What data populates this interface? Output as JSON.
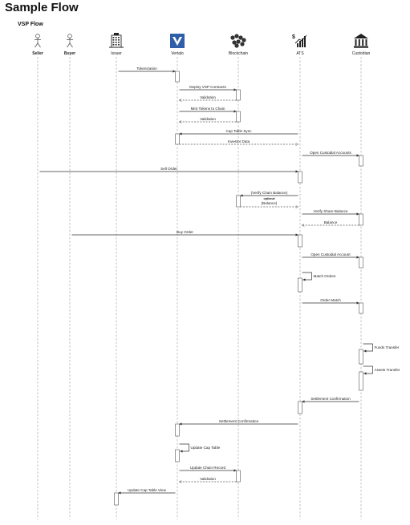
{
  "title": "Sample Flow",
  "flow_title": "VSP Flow",
  "participants": [
    {
      "id": "seller",
      "label": "Seller",
      "icon": "person-icon",
      "bold": true
    },
    {
      "id": "buyer",
      "label": "Buyer",
      "icon": "person-icon",
      "bold": true
    },
    {
      "id": "issuer",
      "label": "Issuer",
      "icon": "building-icon",
      "bold": false
    },
    {
      "id": "vertalo",
      "label": "Vertalo",
      "icon": "vertalo-logo-icon",
      "bold": false
    },
    {
      "id": "blockchain",
      "label": "Blockchain",
      "icon": "blockchain-icon",
      "bold": false
    },
    {
      "id": "ats",
      "label": "ATS",
      "icon": "chart-icon",
      "bold": false
    },
    {
      "id": "custodian",
      "label": "Custodian",
      "icon": "bank-icon",
      "bold": false
    }
  ],
  "messages": [
    {
      "from": "issuer",
      "to": "vertalo",
      "label": "Tokenization",
      "style": "solid"
    },
    {
      "from": "vertalo",
      "to": "blockchain",
      "label": "Deploy VSP Contracts",
      "style": "solid"
    },
    {
      "from": "blockchain",
      "to": "vertalo",
      "label": "Validation",
      "style": "dashed"
    },
    {
      "from": "vertalo",
      "to": "blockchain",
      "label": "Mint Tokens to Chain",
      "style": "solid"
    },
    {
      "from": "blockchain",
      "to": "vertalo",
      "label": "Validation",
      "style": "dashed"
    },
    {
      "from": "ats",
      "to": "vertalo",
      "label": "Cap Table Sync",
      "style": "solid"
    },
    {
      "from": "vertalo",
      "to": "ats",
      "label": "Investor Data",
      "style": "dashed"
    },
    {
      "from": "ats",
      "to": "custodian",
      "label": "Open Custodial Accounts",
      "style": "solid"
    },
    {
      "from": "seller",
      "to": "ats",
      "label": "Sell Order",
      "style": "solid"
    },
    {
      "from": "ats",
      "to": "blockchain",
      "label": "(Verify Chain Balance)",
      "style": "solid",
      "note": "optional"
    },
    {
      "from": "blockchain",
      "to": "ats",
      "label": "(Balance)",
      "style": "dashed"
    },
    {
      "from": "ats",
      "to": "custodian",
      "label": "Verify Share Balance",
      "style": "solid"
    },
    {
      "from": "custodian",
      "to": "ats",
      "label": "Balance",
      "style": "dashed"
    },
    {
      "from": "buyer",
      "to": "ats",
      "label": "Buy Order",
      "style": "solid"
    },
    {
      "from": "ats",
      "to": "custodian",
      "label": "Open Custodial Account",
      "style": "solid"
    },
    {
      "from": "ats",
      "to": "ats",
      "label": "Match Orders",
      "style": "self"
    },
    {
      "from": "ats",
      "to": "custodian",
      "label": "Order Match",
      "style": "solid"
    },
    {
      "from": "custodian",
      "to": "custodian",
      "label": "Funds Transfer",
      "style": "self"
    },
    {
      "from": "custodian",
      "to": "custodian",
      "label": "Assets Transfer",
      "style": "self"
    },
    {
      "from": "custodian",
      "to": "ats",
      "label": "Settlement Confirmation",
      "style": "solid"
    },
    {
      "from": "ats",
      "to": "vertalo",
      "label": "Settlement Confirmation",
      "style": "solid"
    },
    {
      "from": "vertalo",
      "to": "vertalo",
      "label": "Update Cap Table",
      "style": "self"
    },
    {
      "from": "vertalo",
      "to": "blockchain",
      "label": "Update Chain Record",
      "style": "solid"
    },
    {
      "from": "blockchain",
      "to": "vertalo",
      "label": "Validation",
      "style": "dashed"
    },
    {
      "from": "vertalo",
      "to": "issuer",
      "label": "Update Cap Table View",
      "style": "solid"
    }
  ],
  "colors": {
    "vertalo_brand": "#2f5fa8",
    "line": "#333333",
    "lifeline": "#9a9a9a"
  }
}
